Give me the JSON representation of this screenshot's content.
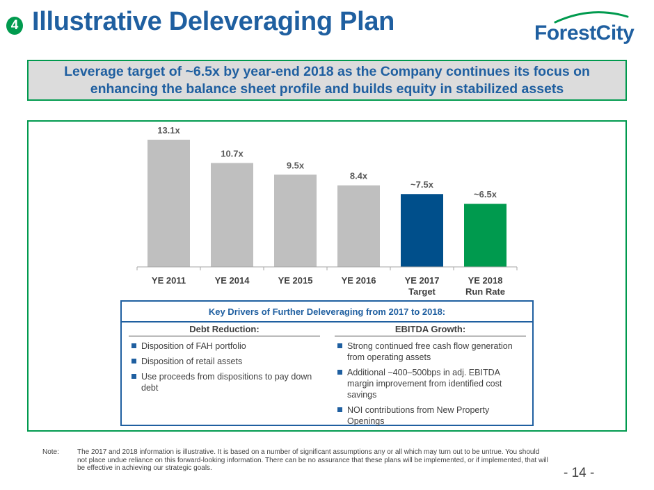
{
  "header": {
    "badge": "4",
    "title": "Illustrative Deleveraging Plan",
    "logo_text": "ForestCity"
  },
  "banner": {
    "line1": "Leverage target of ~6.5x by year-end 2018 as the Company continues its focus on",
    "line2": "enhancing the balance sheet profile and builds equity in stabilized assets"
  },
  "chart_data": {
    "type": "bar",
    "categories": [
      [
        "YE 2011"
      ],
      [
        "YE 2014"
      ],
      [
        "YE 2015"
      ],
      [
        "YE 2016"
      ],
      [
        "YE 2017",
        "Target"
      ],
      [
        "YE 2018",
        "Run Rate"
      ]
    ],
    "values": [
      13.1,
      10.7,
      9.5,
      8.4,
      7.5,
      6.5
    ],
    "labels": [
      "13.1x",
      "10.7x",
      "9.5x",
      "8.4x",
      "~7.5x",
      "~6.5x"
    ],
    "colors": [
      "#bfbfbf",
      "#bfbfbf",
      "#bfbfbf",
      "#bfbfbf",
      "#004f8b",
      "#009a4e"
    ],
    "title": "",
    "xlabel": "",
    "ylabel": "",
    "ylim": [
      0,
      13.1
    ],
    "grid": false,
    "legend": "none"
  },
  "drivers": {
    "title": "Key Drivers of Further Deleveraging from 2017 to 2018:",
    "left": {
      "heading": "Debt Reduction:",
      "items": [
        "Disposition of FAH portfolio",
        "Disposition of retail assets",
        "Use proceeds from dispositions to pay down debt"
      ]
    },
    "right": {
      "heading": "EBITDA Growth:",
      "items": [
        "Strong continued free cash flow generation from operating assets",
        "Additional ~400–500bps in adj. EBITDA margin improvement from identified cost savings",
        "NOI contributions from New Property Openings"
      ]
    }
  },
  "footer": {
    "note_label": "Note:",
    "note_text": "The 2017 and 2018 information is illustrative. It is based on a number of significant assumptions any or all which may turn out to be untrue. You should not place undue reliance on this forward-looking information. There can be no assurance that these plans will be implemented, or if implemented, that will be effective in achieving our strategic goals.",
    "page_number": "- 14 -"
  },
  "colors": {
    "brand_blue": "#1f5fa0",
    "brand_green": "#009a4e",
    "bar_gray": "#bfbfbf",
    "bar_dark_blue": "#004f8b"
  }
}
